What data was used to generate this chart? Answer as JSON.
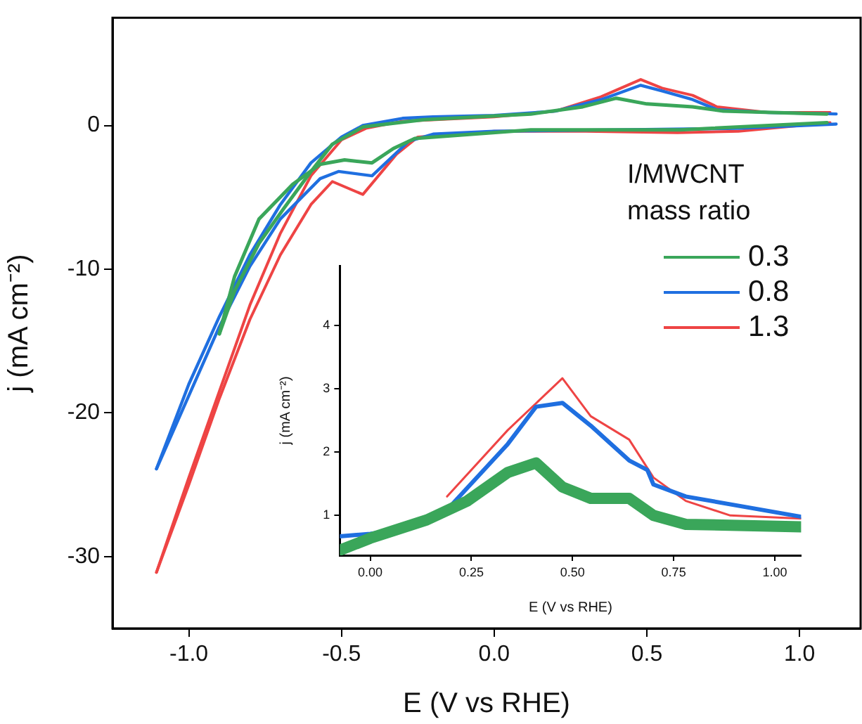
{
  "chart_data": [
    {
      "type": "line",
      "xlabel": "E (V vs RHE)",
      "ylabel": "j (mA cm⁻²)",
      "legend_title": "I/MWCNT mass ratio",
      "legend": "right",
      "marker": "none",
      "grid": false,
      "xlim": [
        -1.25,
        1.2
      ],
      "ylim": [
        -35,
        7.5
      ],
      "xticks": [
        {
          "value": -1,
          "label": "-1.0"
        },
        {
          "value": -0.5,
          "label": "-0.5"
        },
        {
          "value": 0,
          "label": "0.0"
        },
        {
          "value": 0.5,
          "label": "0.5"
        },
        {
          "value": 1,
          "label": "1.0"
        }
      ],
      "yticks": [
        0,
        -10,
        -20,
        -30
      ],
      "series": [
        {
          "name": "0.3",
          "color": "#3aa65a",
          "x": [
            -0.9,
            -0.85,
            -0.77,
            -0.69,
            -0.6,
            -0.53,
            -0.43,
            -0.23,
            0.12,
            0.29,
            0.4,
            0.5,
            0.65,
            0.75,
            1.09
          ],
          "values": [
            -14.5,
            -11.5,
            -8.2,
            -5.8,
            -3.2,
            -1.3,
            -0.1,
            0.4,
            0.8,
            1.3,
            1.9,
            1.5,
            1.3,
            1.0,
            0.8
          ]
        },
        {
          "color": "#3aa65a",
          "x": [
            -0.9,
            -0.85,
            -0.77,
            -0.66,
            -0.57,
            -0.49,
            -0.4,
            -0.33,
            -0.26,
            0.12,
            0.61,
            1.09
          ],
          "values": [
            -14.5,
            -10.5,
            -6.5,
            -4.1,
            -2.7,
            -2.4,
            -2.6,
            -1.6,
            -0.9,
            -0.3,
            -0.3,
            0.2
          ]
        },
        {
          "name": "0.8",
          "color": "#1f6fe0",
          "x": [
            -1.106,
            -1.0,
            -0.9,
            -0.8,
            -0.7,
            -0.6,
            -0.5,
            -0.43,
            -0.3,
            -0.2,
            0,
            0.2,
            0.35,
            0.48,
            0.55,
            0.65,
            0.73,
            0.9,
            1.12
          ],
          "values": [
            -23.9,
            -18,
            -13.3,
            -9,
            -5.5,
            -2.6,
            -0.8,
            0,
            0.5,
            0.6,
            0.7,
            1.0,
            1.8,
            2.8,
            2.4,
            1.8,
            1.1,
            0.9,
            0.8
          ]
        },
        {
          "color": "#1f6fe0",
          "x": [
            -1.106,
            -1.0,
            -0.9,
            -0.8,
            -0.7,
            -0.57,
            -0.51,
            -0.4,
            -0.28,
            -0.2,
            0,
            0.4,
            0.8,
            1.12
          ],
          "values": [
            -23.9,
            -18.8,
            -14,
            -9.8,
            -6.5,
            -3.7,
            -3.2,
            -3.5,
            -1.1,
            -0.6,
            -0.4,
            -0.3,
            -0.2,
            0.1
          ]
        },
        {
          "name": "1.3",
          "color": "#ee4444",
          "x": [
            -1.106,
            -1.0,
            -0.9,
            -0.8,
            -0.7,
            -0.6,
            -0.5,
            -0.42,
            -0.3,
            0,
            0.2,
            0.35,
            0.48,
            0.55,
            0.65,
            0.73,
            0.9,
            1.1
          ],
          "values": [
            -31.1,
            -24.5,
            -18.5,
            -12.5,
            -7.5,
            -3.5,
            -1.0,
            -0.2,
            0.3,
            0.6,
            1.0,
            2.0,
            3.2,
            2.6,
            2.1,
            1.3,
            0.9,
            0.9
          ]
        },
        {
          "color": "#ee4444",
          "x": [
            -1.106,
            -1.0,
            -0.9,
            -0.8,
            -0.7,
            -0.6,
            -0.53,
            -0.43,
            -0.32,
            -0.25,
            0,
            0.3,
            0.6,
            0.8,
            1.1
          ],
          "values": [
            -31.1,
            -25,
            -19,
            -13.5,
            -9,
            -5.5,
            -3.9,
            -4.8,
            -2.0,
            -0.8,
            -0.4,
            -0.4,
            -0.5,
            -0.4,
            0.2
          ]
        }
      ]
    },
    {
      "type": "line",
      "xlabel": "E (V vs RHE)",
      "ylabel": "j (mA cm⁻²)",
      "marker": "none",
      "grid": false,
      "xlim": [
        -0.075,
        1.065
      ],
      "ylim": [
        0.37,
        4.95
      ],
      "xticks": [
        {
          "value": 0,
          "label": "0.00"
        },
        {
          "value": 0.25,
          "label": "0.25"
        },
        {
          "value": 0.5,
          "label": "0.50"
        },
        {
          "value": 0.75,
          "label": "0.75"
        },
        {
          "value": 1,
          "label": "1.00"
        }
      ],
      "yticks": [
        1,
        2,
        3,
        4
      ],
      "series": [
        {
          "color": "#3aa65a",
          "x": [
            -0.075,
            0,
            0.14,
            0.24,
            0.34,
            0.41,
            0.475,
            0.545,
            0.64,
            0.7,
            0.78,
            1.065
          ],
          "values": [
            0.45,
            0.64,
            0.93,
            1.23,
            1.68,
            1.83,
            1.45,
            1.27,
            1.27,
            1.0,
            0.86,
            0.82
          ]
        },
        {
          "color": "#1f6fe0",
          "x": [
            -0.075,
            0,
            0.08,
            0.2,
            0.34,
            0.41,
            0.475,
            0.545,
            0.64,
            0.685,
            0.7,
            0.78,
            1.065
          ],
          "values": [
            0.67,
            0.71,
            0.78,
            1.16,
            2.13,
            2.72,
            2.78,
            2.42,
            1.87,
            1.72,
            1.49,
            1.3,
            0.98
          ]
        },
        {
          "color": "#ee4444",
          "x": [
            0.19,
            0.34,
            0.475,
            0.545,
            0.64,
            0.7,
            0.78,
            0.89,
            1.065
          ],
          "values": [
            1.3,
            2.35,
            3.17,
            2.57,
            2.2,
            1.6,
            1.23,
            1.0,
            0.95
          ]
        }
      ]
    }
  ]
}
